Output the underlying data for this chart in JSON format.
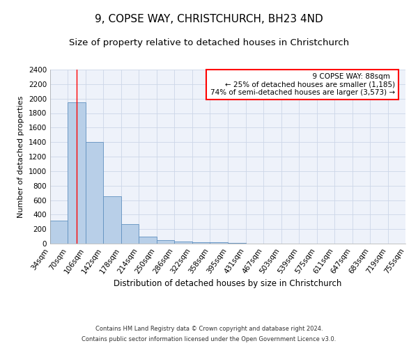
{
  "title": "9, COPSE WAY, CHRISTCHURCH, BH23 4ND",
  "subtitle": "Size of property relative to detached houses in Christchurch",
  "xlabel": "Distribution of detached houses by size in Christchurch",
  "ylabel": "Number of detached properties",
  "footnote1": "Contains HM Land Registry data © Crown copyright and database right 2024.",
  "footnote2": "Contains public sector information licensed under the Open Government Licence v3.0.",
  "annotation_line1": "9 COPSE WAY: 88sqm",
  "annotation_line2": "← 25% of detached houses are smaller (1,185)",
  "annotation_line3": "74% of semi-detached houses are larger (3,573) →",
  "bar_color": "#b8cfe8",
  "bar_edge_color": "#6090c0",
  "red_line_x": 88,
  "bin_edges": [
    34,
    70,
    106,
    142,
    178,
    214,
    250,
    286,
    322,
    358,
    395,
    431,
    467,
    503,
    539,
    575,
    611,
    647,
    683,
    719,
    755
  ],
  "bar_heights": [
    320,
    1950,
    1400,
    650,
    270,
    100,
    45,
    30,
    20,
    15,
    5,
    2,
    1,
    1,
    0,
    0,
    0,
    0,
    0,
    0
  ],
  "ylim": [
    0,
    2400
  ],
  "yticks": [
    0,
    200,
    400,
    600,
    800,
    1000,
    1200,
    1400,
    1600,
    1800,
    2000,
    2200,
    2400
  ],
  "grid_color": "#ccd6e8",
  "background_color": "#eef2fa",
  "title_fontsize": 11,
  "subtitle_fontsize": 9.5,
  "ylabel_fontsize": 8,
  "xlabel_fontsize": 8.5,
  "tick_fontsize": 7.5,
  "annot_fontsize": 7.5,
  "footnote_fontsize": 6
}
